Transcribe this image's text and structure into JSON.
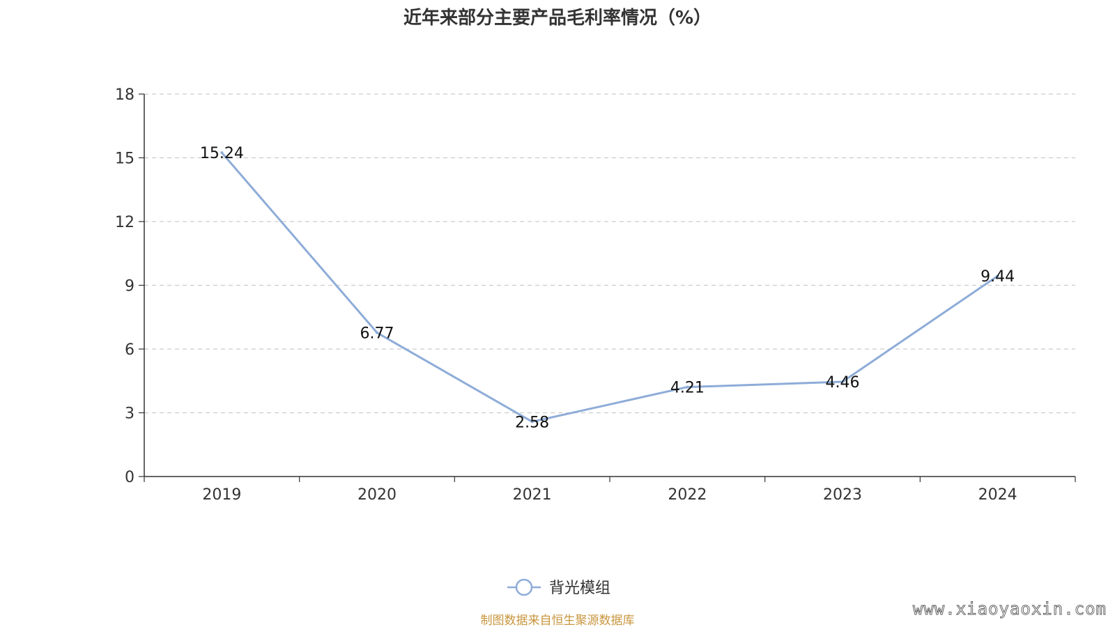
{
  "colors": {
    "series": "#8eacd8",
    "grid": "#cccccc",
    "axis": "#333333",
    "source": "#c8963e"
  },
  "chart_data": {
    "type": "line",
    "title": "近年来部分主要产品毛利率情况（%）",
    "xlabel": "",
    "ylabel": "",
    "categories": [
      "2019",
      "2020",
      "2021",
      "2022",
      "2023",
      "2024"
    ],
    "series": [
      {
        "name": "背光模组",
        "values": [
          15.24,
          6.77,
          2.58,
          4.21,
          4.46,
          9.44
        ],
        "labels": [
          "15.24",
          "6.77",
          "2.58",
          "4.21",
          "4.46",
          "9.44"
        ]
      }
    ],
    "ylim": [
      0,
      18
    ],
    "yticks": [
      0,
      3,
      6,
      9,
      12,
      15,
      18
    ],
    "grid": true,
    "legend_position": "bottom-center"
  },
  "footer": {
    "source": "制图数据来自恒生聚源数据库",
    "watermark": "www.xiaoyaoxin.com"
  }
}
